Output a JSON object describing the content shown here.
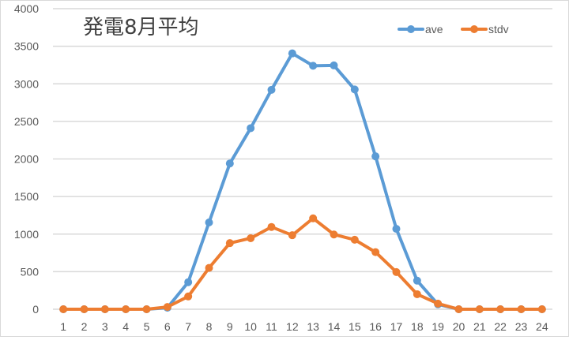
{
  "chart_data": {
    "type": "line",
    "title": "発電8月平均",
    "xlabel": "",
    "ylabel": "",
    "categories": [
      "1",
      "2",
      "3",
      "4",
      "5",
      "6",
      "7",
      "8",
      "9",
      "10",
      "11",
      "12",
      "13",
      "14",
      "15",
      "16",
      "17",
      "18",
      "19",
      "20",
      "21",
      "22",
      "23",
      "24"
    ],
    "ylim": [
      0,
      4000
    ],
    "yticks": [
      0,
      500,
      1000,
      1500,
      2000,
      2500,
      3000,
      3500,
      4000
    ],
    "grid": true,
    "legend_position": "top-right",
    "series": [
      {
        "name": "ave",
        "color": "#5b9bd5",
        "values": [
          0,
          0,
          0,
          0,
          0,
          20,
          360,
          1155,
          1940,
          2410,
          2920,
          3405,
          3240,
          3245,
          2925,
          2035,
          1070,
          380,
          65,
          0,
          0,
          0,
          0,
          0
        ]
      },
      {
        "name": "stdv",
        "color": "#ed7d31",
        "values": [
          0,
          0,
          0,
          0,
          0,
          30,
          170,
          550,
          880,
          945,
          1095,
          985,
          1210,
          995,
          925,
          760,
          495,
          200,
          75,
          0,
          0,
          0,
          0,
          0
        ]
      }
    ]
  }
}
